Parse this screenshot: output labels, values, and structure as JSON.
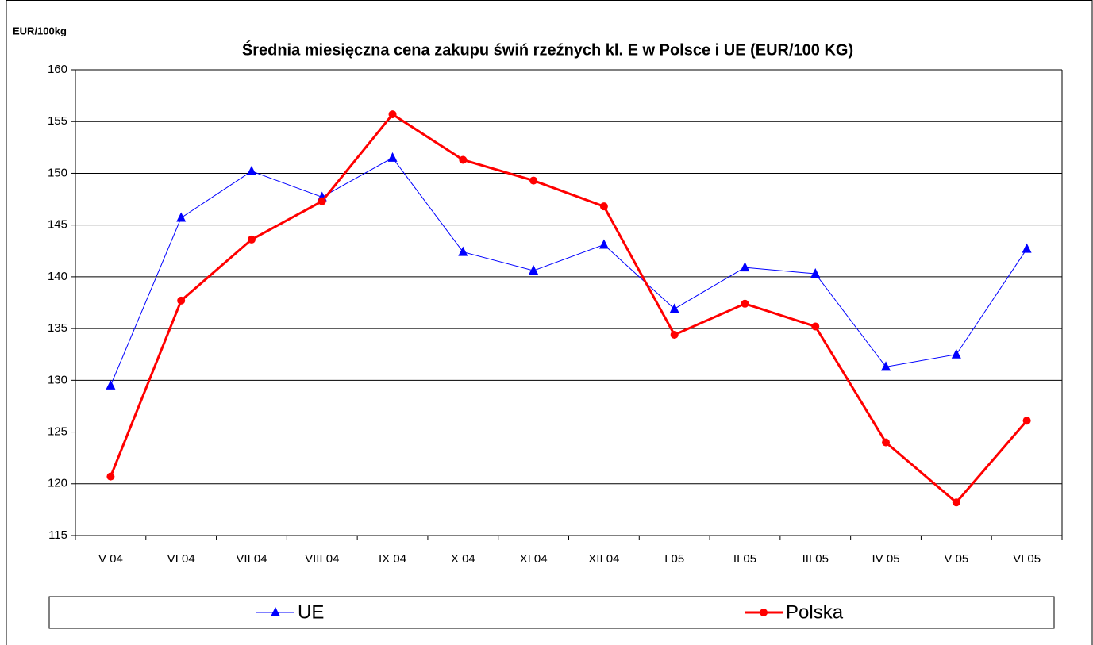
{
  "chart_data": {
    "type": "line",
    "title": "Średnia miesięczna cena zakupu świń rzeźnych kl. E w  Polsce i UE (EUR/100 KG)",
    "y_label": "EUR/100kg",
    "categories": [
      "V 04",
      "VI 04",
      "VII 04",
      "VIII 04",
      "IX 04",
      "X 04",
      "XI 04",
      "XII 04",
      "I 05",
      "II 05",
      "III 05",
      "IV 05",
      "V 05",
      "VI 05"
    ],
    "series": [
      {
        "name": "UE",
        "color": "#0000ff",
        "marker": "triangle",
        "values": [
          129.5,
          145.7,
          150.2,
          147.7,
          151.5,
          142.4,
          140.6,
          143.1,
          136.9,
          140.9,
          140.3,
          131.3,
          132.5,
          142.7
        ]
      },
      {
        "name": "Polska",
        "color": "#ff0000",
        "marker": "circle",
        "values": [
          120.7,
          137.7,
          143.6,
          147.3,
          155.7,
          151.3,
          149.3,
          146.8,
          134.4,
          137.4,
          135.2,
          124.0,
          118.2,
          126.1
        ]
      }
    ],
    "ylim": [
      115,
      160
    ],
    "yticks": [
      115,
      120,
      125,
      130,
      135,
      140,
      145,
      150,
      155,
      160
    ],
    "grid": true
  }
}
